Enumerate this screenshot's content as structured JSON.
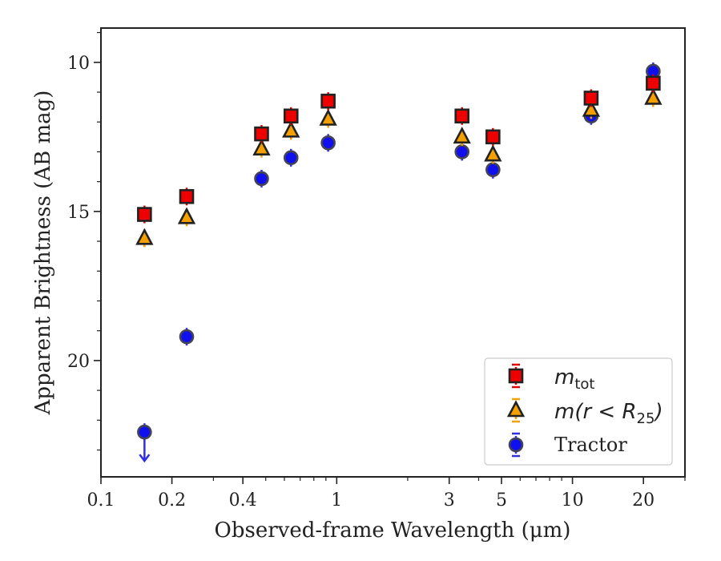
{
  "chart_data": {
    "type": "scatter",
    "xlabel": "Observed-frame Wavelength (μm)",
    "ylabel": "Apparent Brightness (AB mag)",
    "xscale": "log",
    "yaxis_inverted": true,
    "xlim": [
      0.1,
      30
    ],
    "ylim": [
      23.9,
      8.85
    ],
    "xticks": [
      {
        "value": 0.1,
        "label": "0.1"
      },
      {
        "value": 0.2,
        "label": "0.2"
      },
      {
        "value": 0.4,
        "label": "0.4"
      },
      {
        "value": 1,
        "label": "1"
      },
      {
        "value": 3,
        "label": "3"
      },
      {
        "value": 5,
        "label": "5"
      },
      {
        "value": 10,
        "label": "10"
      },
      {
        "value": 20,
        "label": "20"
      }
    ],
    "yticks": [
      {
        "value": 10,
        "label": "10"
      },
      {
        "value": 15,
        "label": "15"
      },
      {
        "value": 20,
        "label": "20"
      }
    ],
    "grid": false,
    "legend_position": "lower right",
    "series": [
      {
        "name": "m_tot",
        "marker": "square",
        "color": "#ee0000",
        "error_color": "#e00000",
        "points": [
          {
            "x": 0.153,
            "y": 15.1
          },
          {
            "x": 0.231,
            "y": 14.5
          },
          {
            "x": 0.48,
            "y": 12.4
          },
          {
            "x": 0.64,
            "y": 11.8
          },
          {
            "x": 0.92,
            "y": 11.3
          },
          {
            "x": 3.4,
            "y": 11.8
          },
          {
            "x": 4.6,
            "y": 12.5
          },
          {
            "x": 12,
            "y": 11.2
          },
          {
            "x": 22,
            "y": 10.7
          }
        ]
      },
      {
        "name": "m(r<R_25)",
        "marker": "triangle",
        "color": "#f5a000",
        "error_color": "#f5a000",
        "points": [
          {
            "x": 0.153,
            "y": 15.9
          },
          {
            "x": 0.231,
            "y": 15.2
          },
          {
            "x": 0.48,
            "y": 12.9
          },
          {
            "x": 0.64,
            "y": 12.3
          },
          {
            "x": 0.92,
            "y": 11.9
          },
          {
            "x": 3.4,
            "y": 12.5
          },
          {
            "x": 4.6,
            "y": 13.1
          },
          {
            "x": 12,
            "y": 11.6
          },
          {
            "x": 22,
            "y": 11.2
          }
        ]
      },
      {
        "name": "Tractor",
        "marker": "circle",
        "color": "#1010ee",
        "error_color": "#3030e0",
        "points": [
          {
            "x": 0.153,
            "y": 22.4,
            "upper_limit": true
          },
          {
            "x": 0.231,
            "y": 19.2
          },
          {
            "x": 0.48,
            "y": 13.9
          },
          {
            "x": 0.64,
            "y": 13.2
          },
          {
            "x": 0.92,
            "y": 12.7
          },
          {
            "x": 3.4,
            "y": 13.0
          },
          {
            "x": 4.6,
            "y": 13.6
          },
          {
            "x": 12,
            "y": 11.8
          },
          {
            "x": 22,
            "y": 10.3
          }
        ]
      }
    ],
    "legend": [
      {
        "label_main": "m",
        "label_sub": "tot",
        "label_rest": ""
      },
      {
        "label_main": "m(r < R",
        "label_sub": "25",
        "label_rest": ")"
      },
      {
        "label_main": "Tractor",
        "label_sub": "",
        "label_rest": ""
      }
    ]
  }
}
